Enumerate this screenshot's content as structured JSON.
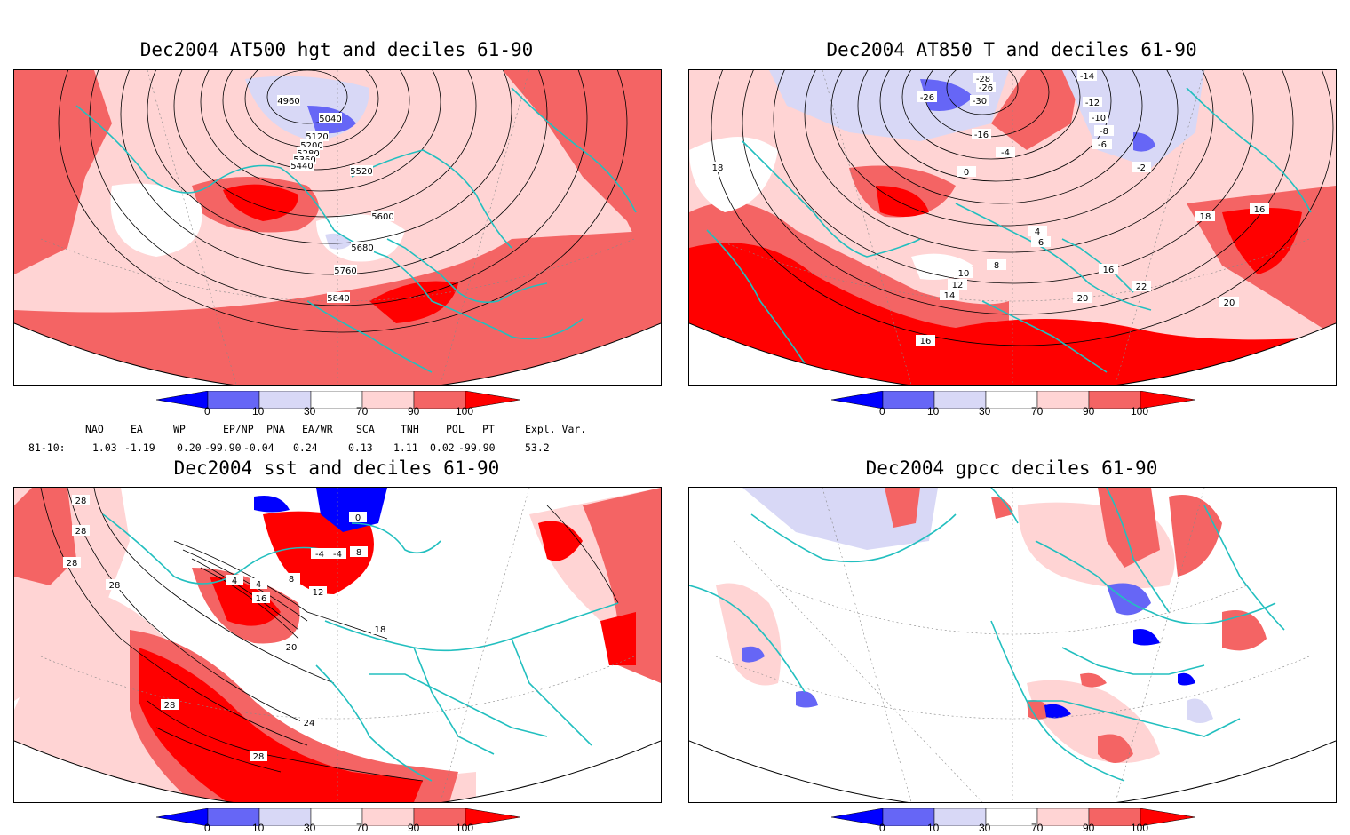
{
  "panels": {
    "hgt": {
      "title": "Dec2004 AT500 hgt and deciles 61-90",
      "contour_labels": [
        "4960",
        "5040",
        "5120",
        "5200",
        "5280",
        "5360",
        "5440",
        "5520",
        "5600",
        "5680",
        "5760",
        "5840"
      ]
    },
    "t850": {
      "title": "Dec2004 AT850 T and deciles 61-90",
      "contour_labels": [
        "-26",
        "-28",
        "-26",
        "-30",
        "-16",
        "-14",
        "-12",
        "-10",
        "-8",
        "-6",
        "-4",
        "-2",
        "0",
        "4",
        "6",
        "8",
        "10",
        "12",
        "14",
        "16",
        "16",
        "16",
        "18",
        "18",
        "20",
        "20",
        "22"
      ]
    },
    "sst": {
      "title": "Dec2004 sst and deciles 61-90",
      "contour_labels": [
        "28",
        "28",
        "28",
        "28",
        "0",
        "4",
        "8",
        "12",
        "16",
        "20",
        "24",
        "28",
        "28",
        "18",
        "8",
        "-4",
        "-4",
        "4"
      ]
    },
    "gpcc": {
      "title": "Dec2004 gpcc deciles 61-90",
      "contour_labels": []
    }
  },
  "colorbar": {
    "labels": [
      "0",
      "10",
      "30",
      "70",
      "90",
      "100"
    ],
    "colors": {
      "lt0": "#0000ff",
      "c0_10": "#6666f6",
      "c10_30": "#d8d8f6",
      "c30_70": "#ffffff",
      "c70_90": "#ffd4d4",
      "c90_100": "#f46464",
      "gt100": "#ff0000"
    }
  },
  "indices": {
    "headers": [
      "NAO",
      "EA",
      "WP",
      "EP/NP",
      "PNA",
      "EA/WR",
      "SCA",
      "TNH",
      "POL",
      "PT",
      "Expl. Var."
    ],
    "row_label": "81-10:",
    "values": [
      "1.03",
      "-1.19",
      "0.20",
      "-99.90",
      "-0.04",
      "0.24",
      "0.13",
      "1.11",
      "0.02",
      "-99.90",
      "53.2"
    ]
  },
  "map_colors": {
    "coast": "#22bfbf",
    "contour": "#000000"
  }
}
